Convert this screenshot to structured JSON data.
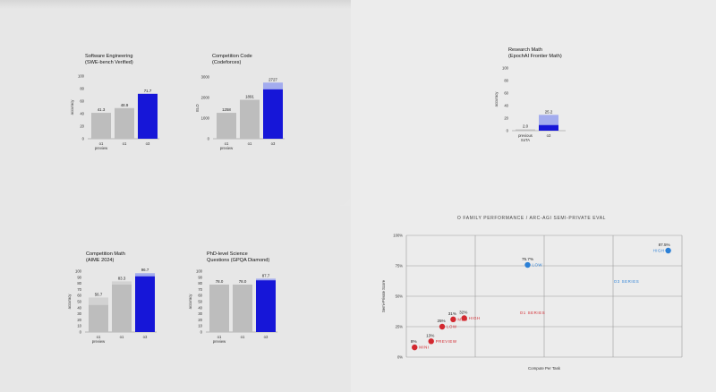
{
  "colors": {
    "bar_gray": "#bdbdbd",
    "bar_gray_light": "#d2d2d2",
    "bar_blue": "#1616d8",
    "bar_blue_light": "#a3acee",
    "point_red": "#d3282f",
    "point_blue": "#2c80d6",
    "grid": "#9a9a9a"
  },
  "chart_data": [
    {
      "id": "swe",
      "type": "bar",
      "title": [
        "Software Engineering",
        "(SWE-bench Verified)"
      ],
      "ylabel": "accuracy",
      "ylim": [
        0,
        100
      ],
      "yticks": [
        0,
        20,
        40,
        60,
        80,
        100
      ],
      "categories": [
        [
          "o1",
          "preview"
        ],
        [
          "o1"
        ],
        [
          "o3"
        ]
      ],
      "values": [
        41.3,
        48.9,
        71.7
      ],
      "value_labels": [
        "41.3",
        "48.9",
        "71.7"
      ],
      "colors": [
        "gray",
        "gray",
        "blue"
      ]
    },
    {
      "id": "codeforces",
      "type": "bar",
      "title": [
        "Competition Code",
        "(Codeforces)"
      ],
      "ylabel": "ELO",
      "ylim": [
        0,
        3000
      ],
      "yticks": [
        0,
        1000,
        2000,
        3000
      ],
      "categories": [
        [
          "o1",
          "preview"
        ],
        [
          "o1"
        ],
        [
          "o3"
        ]
      ],
      "values": [
        1258,
        1891,
        2727
      ],
      "base_values": [
        1258,
        1891,
        2400
      ],
      "value_labels": [
        "1258",
        "1891",
        "2727"
      ],
      "colors": [
        "gray",
        "gray",
        "blue"
      ]
    },
    {
      "id": "frontiermath",
      "type": "bar",
      "title": [
        "Research Math",
        "(EpochAI Frontier Math)"
      ],
      "ylabel": "accuracy",
      "ylim": [
        0,
        100
      ],
      "yticks": [
        0,
        20,
        40,
        60,
        80,
        100
      ],
      "categories": [
        [
          "previous",
          "SoTA"
        ],
        [
          "o3"
        ]
      ],
      "values": [
        2.0,
        25.2
      ],
      "base_values": [
        2.0,
        9.0
      ],
      "value_labels": [
        "2.0",
        "25.2"
      ],
      "colors": [
        "gray",
        "blue"
      ]
    },
    {
      "id": "aime",
      "type": "bar",
      "title": [
        "Competition Math",
        "(AIME 2024)"
      ],
      "ylabel": "accuracy",
      "ylim": [
        0,
        100
      ],
      "yticks": [
        0,
        10,
        20,
        30,
        40,
        50,
        60,
        70,
        80,
        90,
        100
      ],
      "categories": [
        [
          "o1",
          "preview"
        ],
        [
          "o1"
        ],
        [
          "o3"
        ]
      ],
      "values": [
        56.7,
        83.3,
        96.7
      ],
      "base_values": [
        44.6,
        78.0,
        91.6
      ],
      "value_labels": [
        "56.7",
        "83.3",
        "96.7"
      ],
      "colors": [
        "gray",
        "gray",
        "blue"
      ]
    },
    {
      "id": "gpqa",
      "type": "bar",
      "title": [
        "PhD-level Science",
        "Questions (GPQA Diamond)"
      ],
      "ylabel": "accuracy",
      "ylim": [
        0,
        100
      ],
      "yticks": [
        0,
        10,
        20,
        30,
        40,
        50,
        60,
        70,
        80,
        90,
        100
      ],
      "categories": [
        [
          "o1",
          "preview"
        ],
        [
          "o1"
        ],
        [
          "o3"
        ]
      ],
      "values": [
        78.0,
        78.0,
        87.7
      ],
      "base_values": [
        78.0,
        78.0,
        85.0
      ],
      "value_labels": [
        "78.0",
        "78.0",
        "87.7"
      ],
      "colors": [
        "gray",
        "gray",
        "blue"
      ]
    },
    {
      "id": "arc",
      "type": "scatter",
      "title": "O FAMILY PERFORMANCE / ARC-AGI SEMI-PRIVATE EVAL",
      "xlabel": "Compute Per Task",
      "ylabel": "Semi-Private Score",
      "ylim": [
        0,
        100
      ],
      "yticks": [
        "0%",
        "25%",
        "50%",
        "75%",
        "100%"
      ],
      "ytick_values": [
        0,
        25,
        50,
        75,
        100
      ],
      "x_axis_ticks_shown": false,
      "grid": true,
      "series": [
        {
          "name": "O1 SERIES",
          "color": "red",
          "points": [
            {
              "x": 0.3,
              "y": 8,
              "value_label": "8%",
              "label": "MINI"
            },
            {
              "x": 0.9,
              "y": 13,
              "value_label": "13%",
              "label": "PREVIEW"
            },
            {
              "x": 1.3,
              "y": 25,
              "value_label": "25%",
              "label": "LOW"
            },
            {
              "x": 1.7,
              "y": 31,
              "value_label": "31%",
              "label": "MED"
            },
            {
              "x": 2.1,
              "y": 32,
              "value_label": "32%",
              "label": "HIGH"
            }
          ]
        },
        {
          "name": "O3 SERIES",
          "color": "blue",
          "points": [
            {
              "x": 4.4,
              "y": 75.7,
              "value_label": "75.7%",
              "label": "LOW"
            },
            {
              "x": 9.5,
              "y": 87.5,
              "value_label": "87.5%",
              "label": "HIGH"
            }
          ]
        }
      ]
    }
  ]
}
